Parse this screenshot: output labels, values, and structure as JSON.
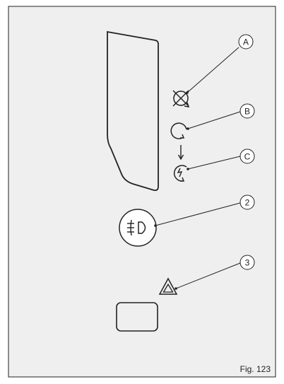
{
  "figure": {
    "caption": "Fig. 123",
    "panel_color": "#efefef",
    "line_color": "#222222",
    "callouts": [
      {
        "id": "A",
        "label": "A"
      },
      {
        "id": "B",
        "label": "B"
      },
      {
        "id": "C",
        "label": "C"
      },
      {
        "id": "2",
        "label": "2"
      },
      {
        "id": "3",
        "label": "3"
      }
    ],
    "icons": [
      "instrument-cluster-panel",
      "bulb-failure-icon",
      "circular-arrow-icon",
      "circular-arrow-flash-icon",
      "front-fog-light-icon",
      "hazard-warning-icon",
      "hazard-switch-button"
    ]
  }
}
